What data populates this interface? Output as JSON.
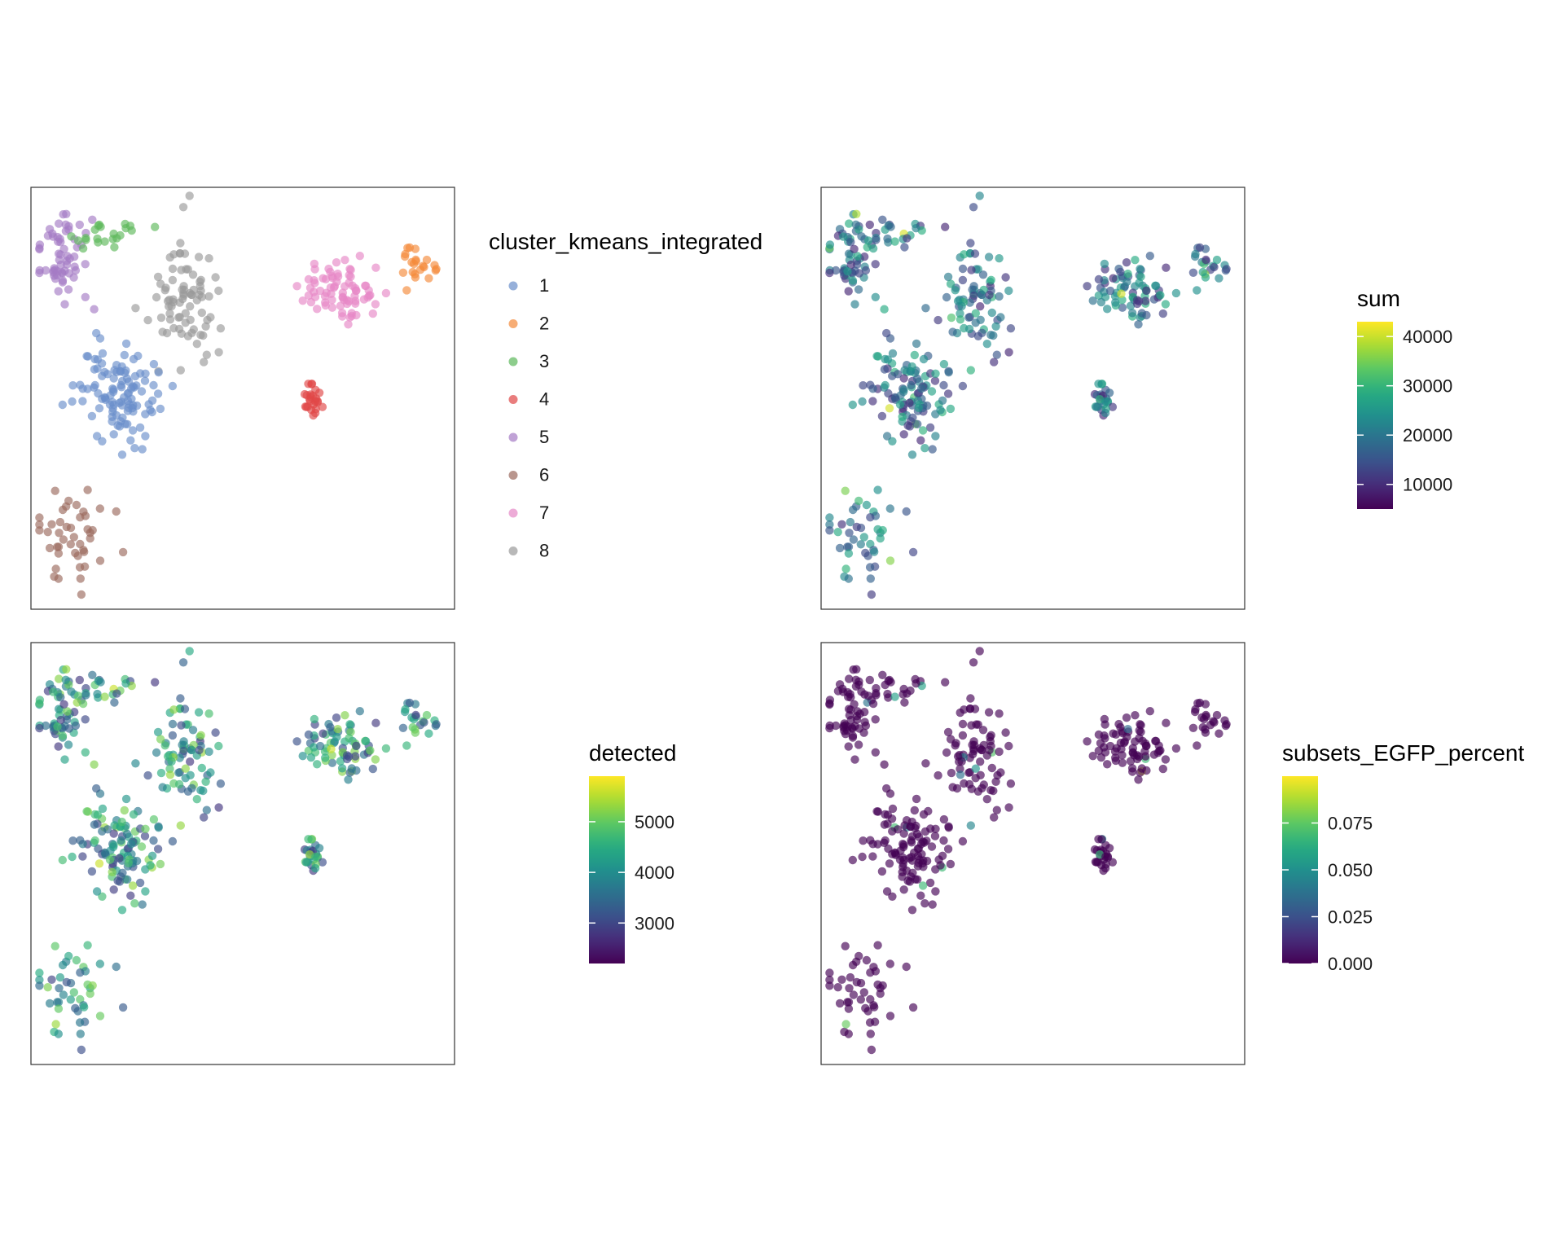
{
  "figure": {
    "title": ""
  },
  "chart_data": [
    {
      "type": "scatter",
      "panel": "top-left",
      "xlim": [
        -7,
        8
      ],
      "ylim": [
        -8,
        7
      ],
      "grid": false,
      "color_by": "categorical",
      "legend": {
        "title": "cluster_kmeans_integrated",
        "placement": "right",
        "entries": [
          {
            "label": "1",
            "color": "#6a8fcb"
          },
          {
            "label": "2",
            "color": "#f48a3a"
          },
          {
            "label": "3",
            "color": "#5db85b"
          },
          {
            "label": "4",
            "color": "#e04646"
          },
          {
            "label": "5",
            "color": "#a57bc5"
          },
          {
            "label": "6",
            "color": "#9b6a5e"
          },
          {
            "label": "7",
            "color": "#e687c6"
          },
          {
            "label": "8",
            "color": "#9a9a9a"
          }
        ]
      },
      "clusters": [
        {
          "label": "5",
          "center": [
            -5.9,
            4.6
          ],
          "spread": [
            0.6,
            1.1
          ],
          "count": 60
        },
        {
          "label": "3",
          "center": [
            -4.3,
            5.3
          ],
          "spread": [
            0.7,
            0.5
          ],
          "count": 22
        },
        {
          "label": "8",
          "center": [
            -1.6,
            3.2
          ],
          "spread": [
            0.8,
            1.6
          ],
          "count": 80
        },
        {
          "label": "1",
          "center": [
            -3.8,
            -0.5
          ],
          "spread": [
            1.1,
            1.1
          ],
          "count": 110
        },
        {
          "label": "6",
          "center": [
            -5.5,
            -5.3
          ],
          "spread": [
            0.8,
            1.0
          ],
          "count": 45
        },
        {
          "label": "7",
          "center": [
            4.2,
            3.2
          ],
          "spread": [
            1.2,
            0.9
          ],
          "count": 75
        },
        {
          "label": "2",
          "center": [
            6.8,
            4.3
          ],
          "spread": [
            0.5,
            0.7
          ],
          "count": 22
        },
        {
          "label": "4",
          "center": [
            3.0,
            -0.6
          ],
          "spread": [
            0.25,
            0.5
          ],
          "count": 25
        }
      ]
    },
    {
      "type": "scatter",
      "panel": "top-right",
      "xlim": [
        -7,
        8
      ],
      "ylim": [
        -8,
        7
      ],
      "grid": false,
      "color_by": "continuous",
      "value_range": [
        5000,
        43000
      ],
      "legend": {
        "title": "sum",
        "placement": "right",
        "ticks": [
          "10000",
          "20000",
          "30000",
          "40000"
        ],
        "tick_values": [
          10000,
          20000,
          30000,
          40000
        ]
      }
    },
    {
      "type": "scatter",
      "panel": "bottom-left",
      "xlim": [
        -7,
        8
      ],
      "ylim": [
        -8,
        7
      ],
      "grid": false,
      "color_by": "continuous",
      "value_range": [
        2200,
        5900
      ],
      "legend": {
        "title": "detected",
        "placement": "right",
        "ticks": [
          "3000",
          "4000",
          "5000"
        ],
        "tick_values": [
          3000,
          4000,
          5000
        ]
      }
    },
    {
      "type": "scatter",
      "panel": "bottom-right",
      "xlim": [
        -7,
        8
      ],
      "ylim": [
        -8,
        7
      ],
      "grid": false,
      "color_by": "continuous",
      "value_range": [
        0,
        0.1
      ],
      "legend": {
        "title": "subsets_EGFP_percent",
        "placement": "right",
        "ticks": [
          "0.000",
          "0.025",
          "0.050",
          "0.075"
        ],
        "tick_values": [
          0,
          0.025,
          0.05,
          0.075
        ]
      }
    }
  ],
  "colormap": "viridis"
}
